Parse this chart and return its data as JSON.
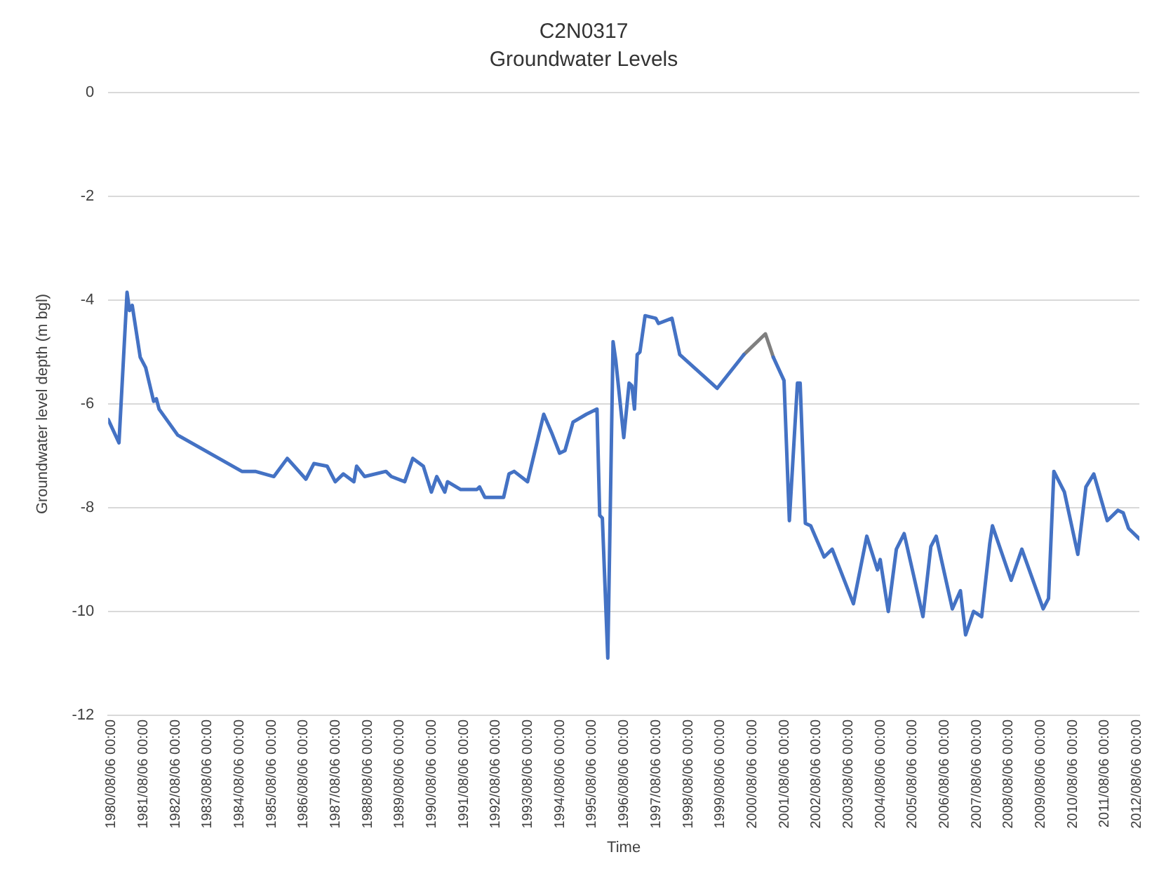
{
  "chart_data": {
    "type": "line",
    "title": "C2N0317",
    "subtitle": "Groundwater Levels",
    "xlabel": "Time",
    "ylabel": "Groundwater level depth (m bgl)",
    "ylim": [
      -12,
      0
    ],
    "yticks": [
      0,
      -2,
      -4,
      -6,
      -8,
      -10,
      -12
    ],
    "xlim": [
      "1980-07",
      "2012-09"
    ],
    "xticks": [
      {
        "value": "1980-08-06",
        "label": "1980/08/06 00:00"
      },
      {
        "value": "1981-08-06",
        "label": "1981/08/06 00:00"
      },
      {
        "value": "1982-08-06",
        "label": "1982/08/06 00:00"
      },
      {
        "value": "1983-08-06",
        "label": "1983/08/06 00:00"
      },
      {
        "value": "1984-08-06",
        "label": "1984/08/06 00:00"
      },
      {
        "value": "1985-08-06",
        "label": "1985/08/06 00:00"
      },
      {
        "value": "1986-08-06",
        "label": "1986/08/06 00:00"
      },
      {
        "value": "1987-08-06",
        "label": "1987/08/06 00:00"
      },
      {
        "value": "1988-08-06",
        "label": "1988/08/06 00:00"
      },
      {
        "value": "1989-08-06",
        "label": "1989/08/06 00:00"
      },
      {
        "value": "1990-08-06",
        "label": "1990/08/06 00:00"
      },
      {
        "value": "1991-08-06",
        "label": "1991/08/06 00:00"
      },
      {
        "value": "1992-08-06",
        "label": "1992/08/06 00:00"
      },
      {
        "value": "1993-08-06",
        "label": "1993/08/06 00:00"
      },
      {
        "value": "1994-08-06",
        "label": "1994/08/06 00:00"
      },
      {
        "value": "1995-08-06",
        "label": "1995/08/06 00:00"
      },
      {
        "value": "1996-08-06",
        "label": "1996/08/06 00:00"
      },
      {
        "value": "1997-08-06",
        "label": "1997/08/06 00:00"
      },
      {
        "value": "1998-08-06",
        "label": "1998/08/06 00:00"
      },
      {
        "value": "1999-08-06",
        "label": "1999/08/06 00:00"
      },
      {
        "value": "2000-08-06",
        "label": "2000/08/06 00:00"
      },
      {
        "value": "2001-08-06",
        "label": "2001/08/06 00:00"
      },
      {
        "value": "2002-08-06",
        "label": "2002/08/06 00:00"
      },
      {
        "value": "2003-08-06",
        "label": "2003/08/06 00:00"
      },
      {
        "value": "2004-08-06",
        "label": "2004/08/06 00:00"
      },
      {
        "value": "2005-08-06",
        "label": "2005/08/06 00:00"
      },
      {
        "value": "2006-08-06",
        "label": "2006/08/06 00:00"
      },
      {
        "value": "2007-08-06",
        "label": "2007/08/06 00:00"
      },
      {
        "value": "2008-08-06",
        "label": "2008/08/06 00:00"
      },
      {
        "value": "2009-08-06",
        "label": "2009/08/06 00:00"
      },
      {
        "value": "2010-08-06",
        "label": "2010/08/06 00:00"
      },
      {
        "value": "2011-08-06",
        "label": "2011/08/06 00:00"
      },
      {
        "value": "2012-08-06",
        "label": "2012/08/06 00:00"
      }
    ],
    "grid": "y",
    "marker": "none",
    "line_style": "solid",
    "series": [
      {
        "color": "#4472c4",
        "x": [
          "1980-07",
          "1980-11",
          "1981-02",
          "1981-03",
          "1981-04",
          "1981-07",
          "1981-09",
          "1981-12",
          "1982-01",
          "1982-02",
          "1982-09",
          "1984-09",
          "1985-02",
          "1985-09",
          "1986-02",
          "1986-09",
          "1986-12",
          "1987-05",
          "1987-08",
          "1987-11",
          "1988-03",
          "1988-04",
          "1988-07",
          "1989-03",
          "1989-05",
          "1989-10",
          "1990-01",
          "1990-05",
          "1990-08",
          "1990-10",
          "1991-01",
          "1991-02",
          "1991-07",
          "1992-01",
          "1992-02",
          "1992-04",
          "1992-11",
          "1993-01",
          "1993-03",
          "1993-08",
          "1994-02",
          "1994-05",
          "1994-08",
          "1994-10",
          "1995-01",
          "1995-06",
          "1995-10",
          "1995-11",
          "1995-12",
          "1996-02",
          "1996-04",
          "1996-05",
          "1996-08",
          "1996-10",
          "1996-11",
          "1996-12",
          "1997-01",
          "1997-02",
          "1997-04",
          "1997-08",
          "1997-09",
          "1998-02",
          "1998-05",
          "1999-07",
          "2000-05",
          "2000-09",
          "2001-04",
          "2001-08",
          "2001-10",
          "2002-01",
          "2002-02",
          "2002-04",
          "2002-06",
          "2002-11",
          "2003-02",
          "2003-10",
          "2004-03",
          "2004-07",
          "2004-08",
          "2004-11",
          "2005-02",
          "2005-05",
          "2005-12",
          "2006-03",
          "2006-05",
          "2006-11",
          "2007-02",
          "2007-04",
          "2007-07",
          "2007-10",
          "2008-01",
          "2008-02",
          "2008-09",
          "2009-01",
          "2009-09",
          "2009-11",
          "2010-01",
          "2010-05",
          "2010-10",
          "2011-01",
          "2011-04",
          "2011-09",
          "2012-01",
          "2012-03",
          "2012-05",
          "2012-09"
        ],
        "values": [
          -6.3,
          -6.75,
          -3.85,
          -4.2,
          -4.1,
          -5.1,
          -5.3,
          -5.95,
          -5.9,
          -6.1,
          -6.6,
          -7.3,
          -7.3,
          -7.4,
          -7.05,
          -7.45,
          -7.15,
          -7.2,
          -7.5,
          -7.35,
          -7.5,
          -7.2,
          -7.4,
          -7.3,
          -7.4,
          -7.5,
          -7.05,
          -7.2,
          -7.7,
          -7.4,
          -7.7,
          -7.5,
          -7.65,
          -7.65,
          -7.6,
          -7.8,
          -7.8,
          -7.35,
          -7.3,
          -7.5,
          -6.2,
          -6.55,
          -6.95,
          -6.9,
          -6.35,
          -6.2,
          -6.1,
          -8.15,
          -8.2,
          -10.9,
          -4.8,
          -5.15,
          -6.65,
          -5.6,
          -5.65,
          -6.1,
          -5.05,
          -5.0,
          -4.3,
          -4.35,
          -4.45,
          -4.35,
          -5.05,
          -5.7,
          -5.05,
          null,
          -5.1,
          -5.55,
          -8.25,
          -5.6,
          -5.6,
          -8.3,
          -8.35,
          -8.95,
          -8.8,
          -9.85,
          -8.55,
          -9.2,
          -9.0,
          -10.0,
          -8.8,
          -8.5,
          -10.1,
          -8.75,
          -8.55,
          -9.95,
          -9.6,
          -10.45,
          -10.0,
          -10.1,
          -8.7,
          -8.35,
          -9.4,
          -8.8,
          -9.95,
          -9.75,
          -7.3,
          -7.7,
          -8.9,
          -7.6,
          -7.35,
          -8.25,
          -8.05,
          -8.1,
          -8.4,
          -8.6
        ]
      },
      {
        "color": "#7f7f7f",
        "x": [
          "2000-05",
          "2001-01",
          "2001-04"
        ],
        "values": [
          -5.05,
          -4.65,
          -5.1
        ]
      }
    ]
  }
}
